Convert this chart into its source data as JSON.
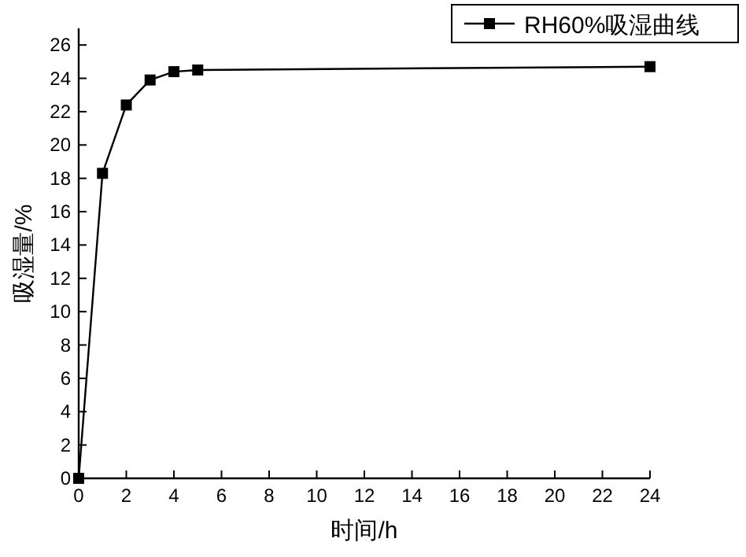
{
  "chart_data": {
    "type": "line",
    "xlabel": "时间/h",
    "ylabel": "吸湿量/%",
    "x": [
      0,
      1,
      2,
      3,
      4,
      5,
      24
    ],
    "series": [
      {
        "name": "RH60%吸湿曲线",
        "color": "#000000",
        "values": [
          0,
          18.3,
          22.4,
          23.9,
          24.4,
          24.5,
          24.7
        ]
      }
    ],
    "xlim": [
      0,
      24
    ],
    "ylim": [
      0,
      27
    ],
    "xticks": [
      0,
      2,
      4,
      6,
      8,
      10,
      12,
      14,
      16,
      18,
      20,
      22,
      24
    ],
    "yticks": [
      0,
      2,
      4,
      6,
      8,
      10,
      12,
      14,
      16,
      18,
      20,
      22,
      24,
      26
    ],
    "marker": "square",
    "line_style": "solid",
    "legend": "top right",
    "grid": false
  }
}
